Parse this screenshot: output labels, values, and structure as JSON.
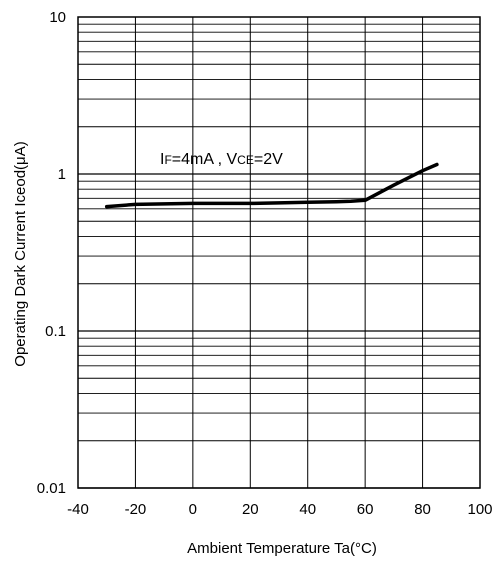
{
  "chart_data": {
    "type": "line",
    "title": "",
    "xlabel": "Ambient Temperature  Ta(°C)",
    "ylabel": "Operating Dark Current Iceod(μA)",
    "xlim": [
      -40,
      100
    ],
    "ylim": [
      0.01,
      10
    ],
    "yscale": "log",
    "grid": true,
    "x_ticks": [
      "-40",
      "-20",
      "0",
      "20",
      "40",
      "60",
      "80",
      "100"
    ],
    "y_ticks": [
      "0.01",
      "0.1",
      "1",
      "10"
    ],
    "annotation": {
      "i_main": "I",
      "i_sub": "F",
      "i_rest": "=4mA , V",
      "v_sub": "CE",
      "v_rest": "=2V"
    },
    "series": [
      {
        "x": [
          -30,
          -20,
          -10,
          0,
          10,
          20,
          30,
          40,
          50,
          55,
          60,
          70,
          80,
          85
        ],
        "y": [
          0.62,
          0.64,
          0.645,
          0.65,
          0.65,
          0.65,
          0.655,
          0.66,
          0.665,
          0.67,
          0.68,
          0.85,
          1.05,
          1.15
        ]
      }
    ]
  }
}
